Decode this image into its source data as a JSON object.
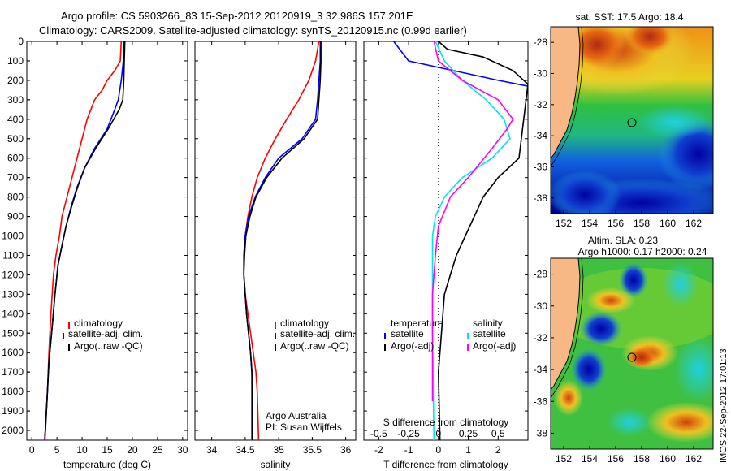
{
  "header": {
    "line1": "Argo profile: CS 5903266_83 15-Sep-2012 20120919_3 32.986S 157.201E",
    "line2": "Climatology: CARS2009. Satellite-adjusted climatology: synTS_20120915.nc (0.99d earlier)"
  },
  "colors": {
    "climatology": "#ff0000",
    "satellite": "#0000ff",
    "argo": "#000000",
    "satellite_s": "#00e5ee",
    "argo_s": "#ff00ff",
    "land": "#f7b886"
  },
  "chart_data": [
    {
      "id": "temperature",
      "type": "line",
      "xlabel": "temperature (deg C)",
      "ylabel": "",
      "xlim": [
        -1,
        31
      ],
      "ylim": [
        2050,
        0
      ],
      "xticks": [
        0,
        5,
        10,
        15,
        20,
        25,
        30
      ],
      "yticks": [
        0,
        100,
        200,
        300,
        400,
        500,
        600,
        700,
        800,
        900,
        1000,
        1100,
        1200,
        1300,
        1400,
        1500,
        1600,
        1700,
        1800,
        1900,
        2000
      ],
      "legend": [
        "climatology",
        "satellite-adj. clim.",
        "Argo(..raw -QC)"
      ],
      "series": [
        {
          "name": "climatology",
          "color_key": "climatology",
          "x": [
            17.8,
            17.6,
            16.5,
            15,
            14,
            12.5,
            11,
            10,
            9,
            8,
            7,
            6,
            5.5,
            4.8,
            4.3,
            3.8,
            3.4,
            3.1,
            2.9,
            2.7,
            2.5
          ],
          "y": [
            0,
            100,
            150,
            200,
            250,
            300,
            400,
            500,
            600,
            700,
            800,
            900,
            1000,
            1100,
            1200,
            1400,
            1600,
            1800,
            1900,
            2000,
            2050
          ]
        },
        {
          "name": "satellite-adj. clim.",
          "color_key": "satellite",
          "x": [
            18.3,
            18.2,
            17.8,
            17.2,
            16.5,
            15,
            12.5,
            10.5,
            9,
            7.8,
            6.8,
            6,
            5.2,
            4.6,
            4.1,
            3.4,
            3.0,
            2.8,
            2.6
          ],
          "y": [
            0,
            100,
            200,
            300,
            350,
            450,
            550,
            650,
            750,
            850,
            950,
            1050,
            1150,
            1300,
            1450,
            1650,
            1850,
            1950,
            2050
          ]
        },
        {
          "name": "Argo(..raw -QC)",
          "color_key": "argo",
          "x": [
            18.5,
            18.4,
            18.3,
            18.1,
            17.4,
            15.2,
            12.7,
            10.5,
            9.1,
            7.9,
            6.8,
            6,
            5.2,
            4.6,
            4.1,
            3.4,
            3.0,
            2.8,
            2.6
          ],
          "y": [
            0,
            100,
            200,
            300,
            350,
            450,
            550,
            650,
            750,
            850,
            950,
            1050,
            1150,
            1300,
            1450,
            1650,
            1850,
            1950,
            2030
          ]
        }
      ]
    },
    {
      "id": "salinity",
      "type": "line",
      "xlabel": "salinity",
      "ylabel": "",
      "xlim": [
        33.75,
        36.15
      ],
      "ylim": [
        2050,
        0
      ],
      "xticks": [
        34,
        34.5,
        35,
        35.5,
        36
      ],
      "yticks": [
        0,
        100,
        200,
        300,
        400,
        500,
        600,
        700,
        800,
        900,
        1000,
        1100,
        1200,
        1300,
        1400,
        1500,
        1600,
        1700,
        1800,
        1900,
        2000
      ],
      "legend": [
        "climatology",
        "satellite-adj. clim.",
        "Argo(..raw -QC)"
      ],
      "annotations": [
        "Argo Australia",
        "PI: Susan Wijffels"
      ],
      "series": [
        {
          "name": "climatology",
          "color_key": "climatology",
          "x": [
            35.6,
            35.55,
            35.45,
            35.3,
            35.12,
            34.95,
            34.8,
            34.68,
            34.6,
            34.54,
            34.5,
            34.48,
            34.48,
            34.5,
            34.54,
            34.58,
            34.62,
            34.66,
            34.68,
            34.7
          ],
          "y": [
            0,
            100,
            200,
            300,
            400,
            500,
            600,
            700,
            800,
            900,
            1000,
            1100,
            1200,
            1300,
            1400,
            1500,
            1600,
            1700,
            1800,
            2050
          ]
        },
        {
          "name": "satellite-adj. clim.",
          "color_key": "satellite",
          "x": [
            35.62,
            35.62,
            35.6,
            35.58,
            35.55,
            35.35,
            35.0,
            34.8,
            34.65,
            34.55,
            34.5,
            34.48,
            34.48,
            34.5,
            34.52,
            34.55,
            34.58,
            34.6,
            34.6,
            34.6
          ],
          "y": [
            0,
            100,
            200,
            300,
            400,
            500,
            600,
            700,
            800,
            900,
            1000,
            1100,
            1200,
            1300,
            1400,
            1500,
            1600,
            1700,
            1800,
            2050
          ]
        },
        {
          "name": "Argo(..raw -QC)",
          "color_key": "argo",
          "x": [
            35.63,
            35.63,
            35.62,
            35.6,
            35.58,
            35.38,
            35.05,
            34.82,
            34.66,
            34.57,
            34.51,
            34.49,
            34.48,
            34.5,
            34.52,
            34.55,
            34.58,
            34.6,
            34.61,
            34.61
          ],
          "y": [
            0,
            100,
            200,
            300,
            400,
            500,
            600,
            700,
            800,
            900,
            1000,
            1100,
            1200,
            1300,
            1400,
            1500,
            1600,
            1700,
            1800,
            2050
          ]
        }
      ]
    },
    {
      "id": "difference",
      "type": "line",
      "xlabel": "T difference from climatology",
      "xlabel_top": "S difference from climatology",
      "xlim": [
        -2.5,
        3.0
      ],
      "ylim": [
        2050,
        0
      ],
      "xticks": [
        -2,
        -1,
        0,
        1,
        2
      ],
      "sticks": [
        [
          "-0.5",
          -2
        ],
        [
          "-0.25",
          -1
        ],
        [
          "0",
          0
        ],
        [
          "0.25",
          1
        ],
        [
          "0.5",
          2
        ]
      ],
      "legend_titles": [
        "temperature",
        "salinity"
      ],
      "legend": [
        "satellite",
        "Argo(-adj)",
        "satellite",
        "Argo(-adj)"
      ],
      "series": [
        {
          "name": "satellite",
          "group": "temperature",
          "color_key": "satellite",
          "x": [
            -1.5,
            -1.0,
            0.5,
            2.0,
            3.0
          ],
          "y": [
            0,
            100,
            150,
            200,
            230
          ]
        },
        {
          "name": "Argo(-adj)",
          "group": "temperature",
          "color_key": "argo",
          "x": [
            0.0,
            0.3,
            1.5,
            2.5,
            3.0,
            2.7,
            2.0,
            1.5,
            1.2,
            0.9,
            0.6,
            0.4,
            0.2,
            0.1,
            0.0,
            0.05
          ],
          "y": [
            0,
            40,
            80,
            150,
            220,
            600,
            700,
            800,
            900,
            1000,
            1100,
            1200,
            1300,
            1500,
            1700,
            2050
          ]
        },
        {
          "name": "satellite",
          "group": "salinity",
          "color_key": "satellite_s",
          "x": [
            -0.1,
            0.2,
            0.8,
            1.6,
            2.2,
            2.4,
            1.8,
            0.8,
            0.2,
            -0.1,
            -0.2,
            -0.2,
            -0.2,
            -0.15
          ],
          "y": [
            0,
            100,
            200,
            300,
            400,
            500,
            600,
            700,
            800,
            900,
            1000,
            1200,
            1500,
            2050
          ]
        },
        {
          "name": "Argo(-adj)",
          "group": "salinity",
          "color_key": "argo_s",
          "x": [
            -0.15,
            0.0,
            0.8,
            2.0,
            2.5,
            2.3,
            1.8,
            1.0,
            0.4,
            0.0,
            -0.1,
            -0.2,
            -0.2,
            -0.2
          ],
          "y": [
            0,
            100,
            200,
            300,
            400,
            450,
            550,
            700,
            800,
            950,
            1100,
            1300,
            1600,
            1850
          ]
        }
      ]
    },
    {
      "id": "map_sst",
      "type": "heatmap",
      "title": "sat. SST: 17.5 Argo: 18.4",
      "xticks": [
        152,
        154,
        156,
        158,
        160,
        162
      ],
      "yticks": [
        -28,
        -30,
        -32,
        -34,
        -36,
        -38
      ],
      "xlim": [
        151,
        163.5
      ],
      "ylim": [
        -39,
        -27
      ],
      "argo_position": [
        157.2,
        -33.0
      ]
    },
    {
      "id": "map_sla",
      "type": "heatmap",
      "title": "Altim. SLA: 0.23",
      "subtitle": "Argo h1000: 0.17 h2000: 0.24",
      "xticks": [
        152,
        154,
        156,
        158,
        160,
        162
      ],
      "yticks": [
        -28,
        -30,
        -32,
        -34,
        -36,
        -38
      ],
      "xlim": [
        151,
        163.5
      ],
      "ylim": [
        -39,
        -27
      ],
      "argo_position": [
        157.2,
        -33.0
      ]
    }
  ],
  "footer": {
    "stamp": "IMOS 22-Sep-2012 17:01:13"
  }
}
